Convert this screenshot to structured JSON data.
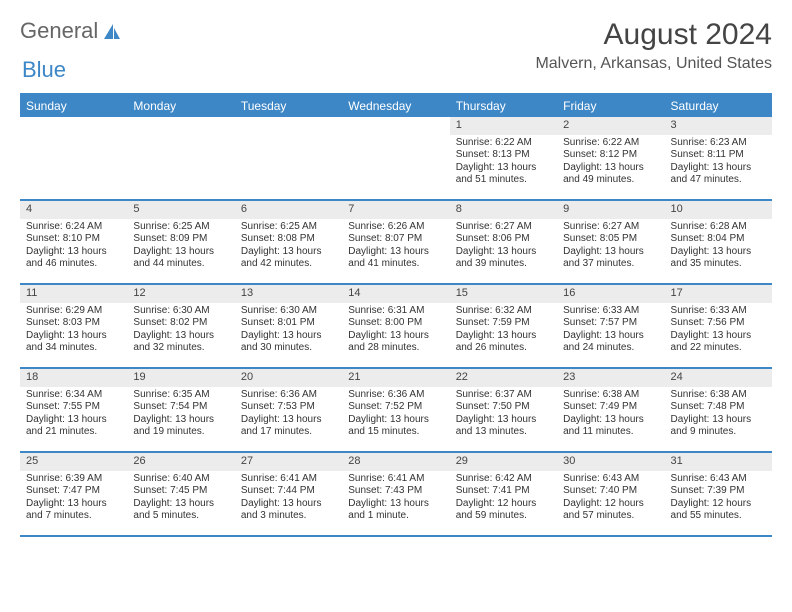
{
  "brand": {
    "part1": "General",
    "part2": "Blue"
  },
  "title": "August 2024",
  "location": "Malvern, Arkansas, United States",
  "colors": {
    "accent": "#3d87c7",
    "row_gray": "#ececec",
    "text": "#333333"
  },
  "day_headers": [
    "Sunday",
    "Monday",
    "Tuesday",
    "Wednesday",
    "Thursday",
    "Friday",
    "Saturday"
  ],
  "weeks": [
    [
      {
        "n": "",
        "sr": "",
        "ss": "",
        "dl": ""
      },
      {
        "n": "",
        "sr": "",
        "ss": "",
        "dl": ""
      },
      {
        "n": "",
        "sr": "",
        "ss": "",
        "dl": ""
      },
      {
        "n": "",
        "sr": "",
        "ss": "",
        "dl": ""
      },
      {
        "n": "1",
        "sr": "Sunrise: 6:22 AM",
        "ss": "Sunset: 8:13 PM",
        "dl": "Daylight: 13 hours and 51 minutes."
      },
      {
        "n": "2",
        "sr": "Sunrise: 6:22 AM",
        "ss": "Sunset: 8:12 PM",
        "dl": "Daylight: 13 hours and 49 minutes."
      },
      {
        "n": "3",
        "sr": "Sunrise: 6:23 AM",
        "ss": "Sunset: 8:11 PM",
        "dl": "Daylight: 13 hours and 47 minutes."
      }
    ],
    [
      {
        "n": "4",
        "sr": "Sunrise: 6:24 AM",
        "ss": "Sunset: 8:10 PM",
        "dl": "Daylight: 13 hours and 46 minutes."
      },
      {
        "n": "5",
        "sr": "Sunrise: 6:25 AM",
        "ss": "Sunset: 8:09 PM",
        "dl": "Daylight: 13 hours and 44 minutes."
      },
      {
        "n": "6",
        "sr": "Sunrise: 6:25 AM",
        "ss": "Sunset: 8:08 PM",
        "dl": "Daylight: 13 hours and 42 minutes."
      },
      {
        "n": "7",
        "sr": "Sunrise: 6:26 AM",
        "ss": "Sunset: 8:07 PM",
        "dl": "Daylight: 13 hours and 41 minutes."
      },
      {
        "n": "8",
        "sr": "Sunrise: 6:27 AM",
        "ss": "Sunset: 8:06 PM",
        "dl": "Daylight: 13 hours and 39 minutes."
      },
      {
        "n": "9",
        "sr": "Sunrise: 6:27 AM",
        "ss": "Sunset: 8:05 PM",
        "dl": "Daylight: 13 hours and 37 minutes."
      },
      {
        "n": "10",
        "sr": "Sunrise: 6:28 AM",
        "ss": "Sunset: 8:04 PM",
        "dl": "Daylight: 13 hours and 35 minutes."
      }
    ],
    [
      {
        "n": "11",
        "sr": "Sunrise: 6:29 AM",
        "ss": "Sunset: 8:03 PM",
        "dl": "Daylight: 13 hours and 34 minutes."
      },
      {
        "n": "12",
        "sr": "Sunrise: 6:30 AM",
        "ss": "Sunset: 8:02 PM",
        "dl": "Daylight: 13 hours and 32 minutes."
      },
      {
        "n": "13",
        "sr": "Sunrise: 6:30 AM",
        "ss": "Sunset: 8:01 PM",
        "dl": "Daylight: 13 hours and 30 minutes."
      },
      {
        "n": "14",
        "sr": "Sunrise: 6:31 AM",
        "ss": "Sunset: 8:00 PM",
        "dl": "Daylight: 13 hours and 28 minutes."
      },
      {
        "n": "15",
        "sr": "Sunrise: 6:32 AM",
        "ss": "Sunset: 7:59 PM",
        "dl": "Daylight: 13 hours and 26 minutes."
      },
      {
        "n": "16",
        "sr": "Sunrise: 6:33 AM",
        "ss": "Sunset: 7:57 PM",
        "dl": "Daylight: 13 hours and 24 minutes."
      },
      {
        "n": "17",
        "sr": "Sunrise: 6:33 AM",
        "ss": "Sunset: 7:56 PM",
        "dl": "Daylight: 13 hours and 22 minutes."
      }
    ],
    [
      {
        "n": "18",
        "sr": "Sunrise: 6:34 AM",
        "ss": "Sunset: 7:55 PM",
        "dl": "Daylight: 13 hours and 21 minutes."
      },
      {
        "n": "19",
        "sr": "Sunrise: 6:35 AM",
        "ss": "Sunset: 7:54 PM",
        "dl": "Daylight: 13 hours and 19 minutes."
      },
      {
        "n": "20",
        "sr": "Sunrise: 6:36 AM",
        "ss": "Sunset: 7:53 PM",
        "dl": "Daylight: 13 hours and 17 minutes."
      },
      {
        "n": "21",
        "sr": "Sunrise: 6:36 AM",
        "ss": "Sunset: 7:52 PM",
        "dl": "Daylight: 13 hours and 15 minutes."
      },
      {
        "n": "22",
        "sr": "Sunrise: 6:37 AM",
        "ss": "Sunset: 7:50 PM",
        "dl": "Daylight: 13 hours and 13 minutes."
      },
      {
        "n": "23",
        "sr": "Sunrise: 6:38 AM",
        "ss": "Sunset: 7:49 PM",
        "dl": "Daylight: 13 hours and 11 minutes."
      },
      {
        "n": "24",
        "sr": "Sunrise: 6:38 AM",
        "ss": "Sunset: 7:48 PM",
        "dl": "Daylight: 13 hours and 9 minutes."
      }
    ],
    [
      {
        "n": "25",
        "sr": "Sunrise: 6:39 AM",
        "ss": "Sunset: 7:47 PM",
        "dl": "Daylight: 13 hours and 7 minutes."
      },
      {
        "n": "26",
        "sr": "Sunrise: 6:40 AM",
        "ss": "Sunset: 7:45 PM",
        "dl": "Daylight: 13 hours and 5 minutes."
      },
      {
        "n": "27",
        "sr": "Sunrise: 6:41 AM",
        "ss": "Sunset: 7:44 PM",
        "dl": "Daylight: 13 hours and 3 minutes."
      },
      {
        "n": "28",
        "sr": "Sunrise: 6:41 AM",
        "ss": "Sunset: 7:43 PM",
        "dl": "Daylight: 13 hours and 1 minute."
      },
      {
        "n": "29",
        "sr": "Sunrise: 6:42 AM",
        "ss": "Sunset: 7:41 PM",
        "dl": "Daylight: 12 hours and 59 minutes."
      },
      {
        "n": "30",
        "sr": "Sunrise: 6:43 AM",
        "ss": "Sunset: 7:40 PM",
        "dl": "Daylight: 12 hours and 57 minutes."
      },
      {
        "n": "31",
        "sr": "Sunrise: 6:43 AM",
        "ss": "Sunset: 7:39 PM",
        "dl": "Daylight: 12 hours and 55 minutes."
      }
    ]
  ]
}
